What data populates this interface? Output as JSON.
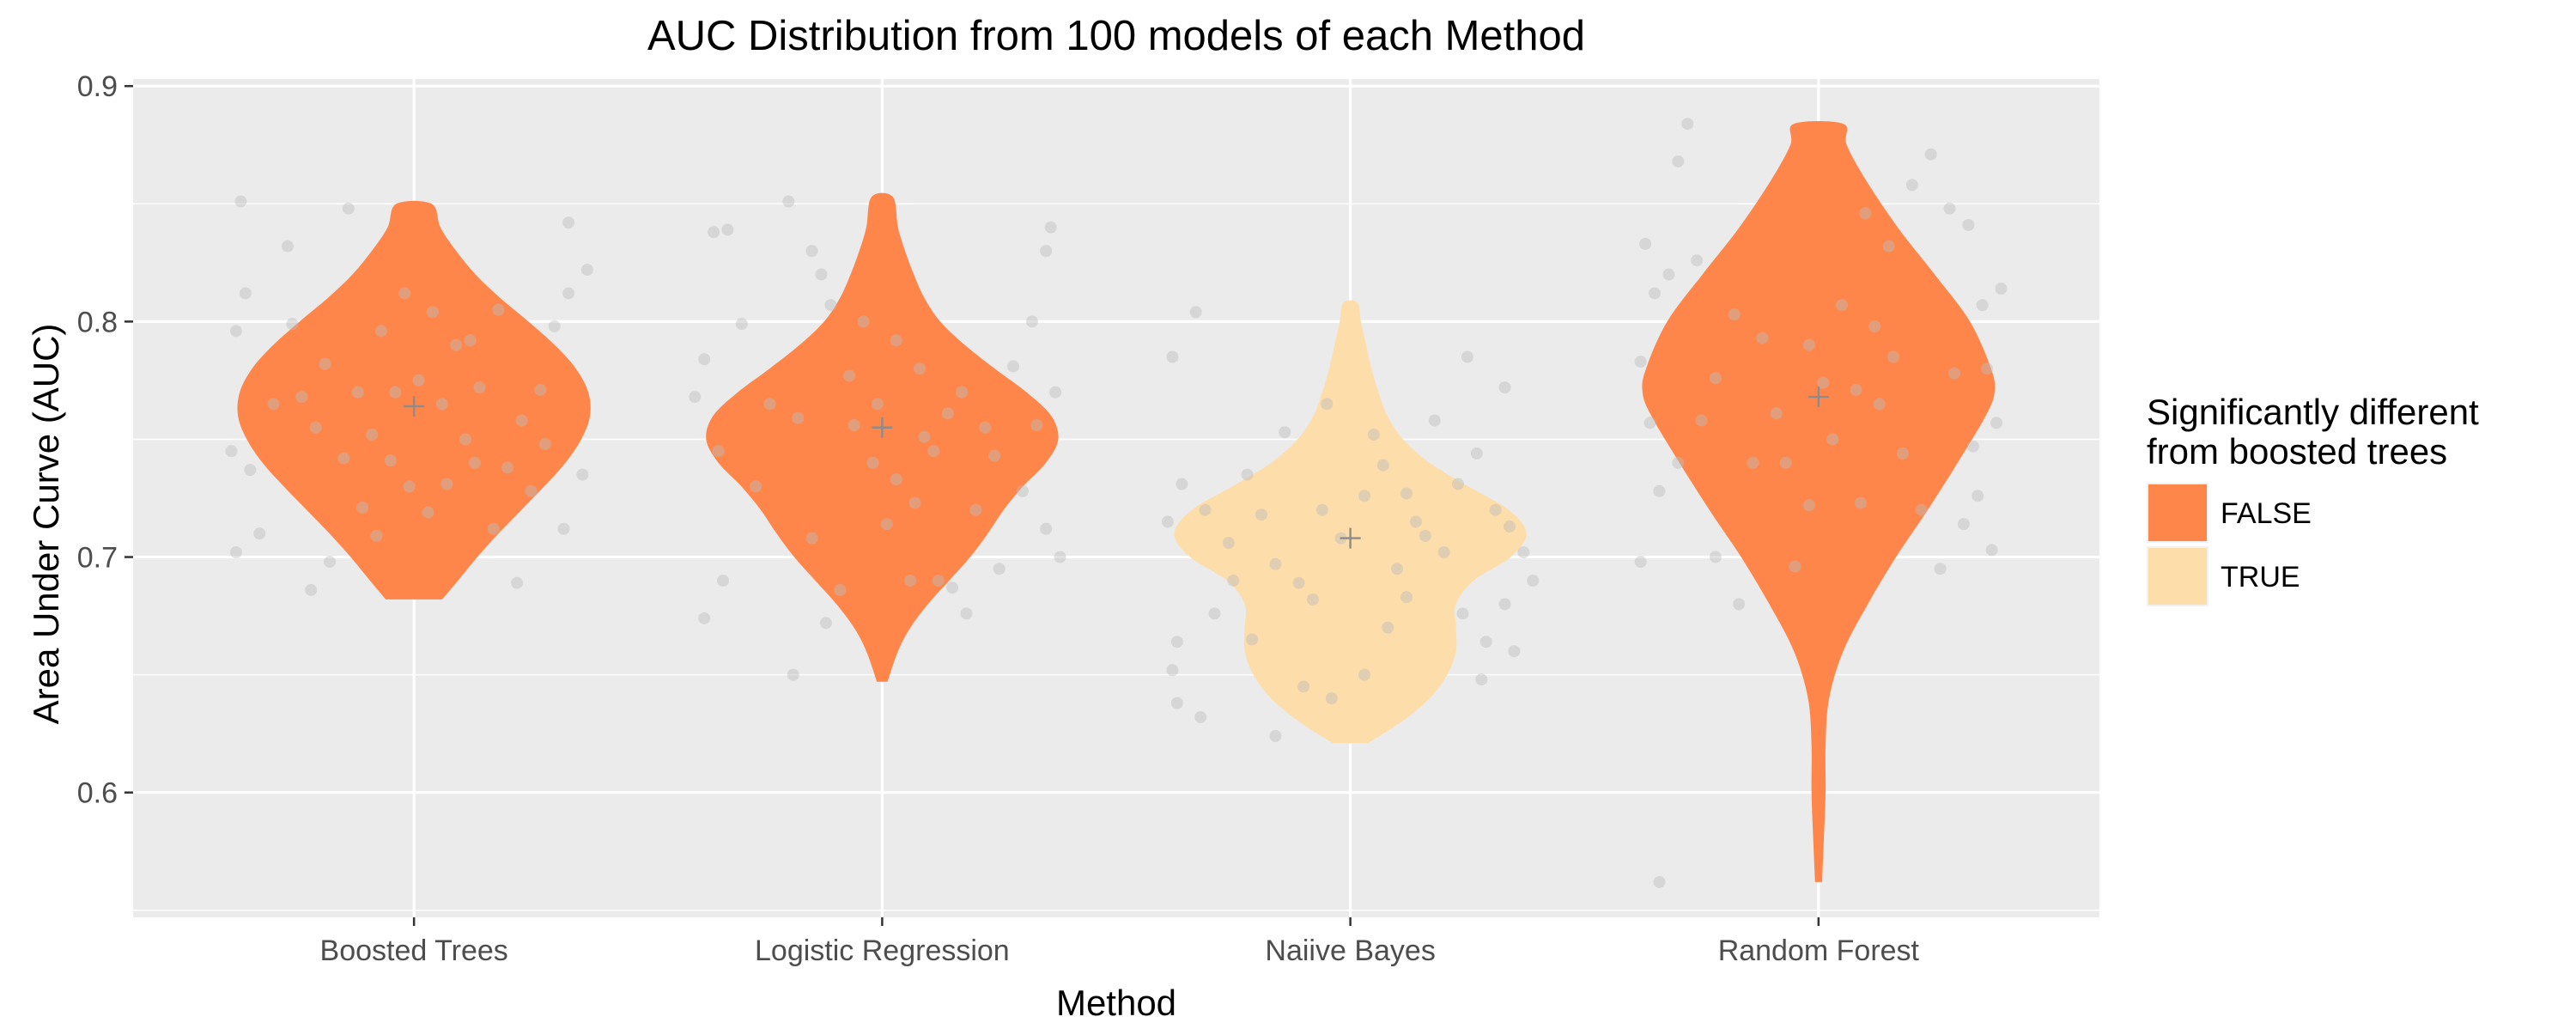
{
  "chart_data": {
    "type": "violin",
    "title": "AUC Distribution from 100 models of each Method",
    "xlabel": "Method",
    "ylabel": "Area Under Curve (AUC)",
    "categories": [
      "Boosted Trees",
      "Logistic Regression",
      "Naiive Bayes",
      "Random Forest"
    ],
    "ylim": [
      0.547,
      0.903
    ],
    "yticks": [
      0.6,
      0.7,
      0.8,
      0.9
    ],
    "ytick_labels": [
      "0.6",
      "0.7",
      "0.8",
      "0.9"
    ],
    "grid": true,
    "legend": {
      "title": [
        "Significantly different",
        "from boosted trees"
      ],
      "position": "right",
      "entries": [
        {
          "label": "FALSE",
          "color": "#FF864A"
        },
        {
          "label": "TRUE",
          "color": "#FDDDAA"
        }
      ]
    },
    "colors": {
      "panel_bg": "#EBEBEB",
      "gridline": "#FFFFFF",
      "false_fill": "#FF864A",
      "true_fill": "#FDDDAA",
      "jitter_point": "#BDBDBD",
      "mean_marker": "#8C8C8C"
    },
    "series": [
      {
        "category": "Boosted Trees",
        "significant": "FALSE",
        "mean": 0.764,
        "min": 0.682,
        "max": 0.85,
        "profile": [
          [
            0.682,
            0.16
          ],
          [
            0.69,
            0.25
          ],
          [
            0.7,
            0.36
          ],
          [
            0.71,
            0.48
          ],
          [
            0.72,
            0.61
          ],
          [
            0.73,
            0.74
          ],
          [
            0.74,
            0.86
          ],
          [
            0.75,
            0.95
          ],
          [
            0.76,
            1.0
          ],
          [
            0.77,
            0.99
          ],
          [
            0.78,
            0.92
          ],
          [
            0.79,
            0.8
          ],
          [
            0.8,
            0.65
          ],
          [
            0.81,
            0.49
          ],
          [
            0.82,
            0.35
          ],
          [
            0.83,
            0.24
          ],
          [
            0.84,
            0.15
          ],
          [
            0.85,
            0.1
          ]
        ]
      },
      {
        "category": "Logistic Regression",
        "significant": "FALSE",
        "mean": 0.755,
        "min": 0.647,
        "max": 0.853,
        "profile": [
          [
            0.647,
            0.03
          ],
          [
            0.66,
            0.09
          ],
          [
            0.67,
            0.16
          ],
          [
            0.68,
            0.26
          ],
          [
            0.69,
            0.38
          ],
          [
            0.7,
            0.5
          ],
          [
            0.71,
            0.6
          ],
          [
            0.72,
            0.69
          ],
          [
            0.73,
            0.8
          ],
          [
            0.74,
            0.93
          ],
          [
            0.75,
            1.0
          ],
          [
            0.76,
            0.96
          ],
          [
            0.77,
            0.82
          ],
          [
            0.78,
            0.64
          ],
          [
            0.79,
            0.47
          ],
          [
            0.8,
            0.33
          ],
          [
            0.81,
            0.24
          ],
          [
            0.82,
            0.18
          ],
          [
            0.83,
            0.13
          ],
          [
            0.84,
            0.09
          ],
          [
            0.853,
            0.06
          ]
        ]
      },
      {
        "category": "Naiive Bayes",
        "significant": "TRUE",
        "mean": 0.708,
        "min": 0.621,
        "max": 0.808,
        "profile": [
          [
            0.621,
            0.1
          ],
          [
            0.63,
            0.29
          ],
          [
            0.64,
            0.45
          ],
          [
            0.65,
            0.55
          ],
          [
            0.66,
            0.6
          ],
          [
            0.67,
            0.6
          ],
          [
            0.68,
            0.6
          ],
          [
            0.69,
            0.7
          ],
          [
            0.7,
            0.91
          ],
          [
            0.71,
            1.0
          ],
          [
            0.72,
            0.9
          ],
          [
            0.73,
            0.67
          ],
          [
            0.74,
            0.45
          ],
          [
            0.75,
            0.3
          ],
          [
            0.76,
            0.21
          ],
          [
            0.77,
            0.16
          ],
          [
            0.78,
            0.12
          ],
          [
            0.79,
            0.09
          ],
          [
            0.8,
            0.06
          ],
          [
            0.808,
            0.04
          ]
        ]
      },
      {
        "category": "Random Forest",
        "significant": "FALSE",
        "mean": 0.768,
        "min": 0.562,
        "max": 0.884,
        "profile": [
          [
            0.562,
            0.02
          ],
          [
            0.58,
            0.03
          ],
          [
            0.6,
            0.04
          ],
          [
            0.62,
            0.04
          ],
          [
            0.64,
            0.06
          ],
          [
            0.66,
            0.14
          ],
          [
            0.68,
            0.28
          ],
          [
            0.7,
            0.44
          ],
          [
            0.72,
            0.62
          ],
          [
            0.74,
            0.79
          ],
          [
            0.76,
            0.95
          ],
          [
            0.77,
            1.0
          ],
          [
            0.78,
            0.98
          ],
          [
            0.8,
            0.86
          ],
          [
            0.82,
            0.66
          ],
          [
            0.84,
            0.45
          ],
          [
            0.86,
            0.27
          ],
          [
            0.875,
            0.16
          ],
          [
            0.884,
            0.14
          ]
        ]
      }
    ],
    "jitter_points": {
      "Boosted Trees": [
        [
          -0.37,
          0.851
        ],
        [
          -0.36,
          0.812
        ],
        [
          -0.38,
          0.796
        ],
        [
          -0.39,
          0.745
        ],
        [
          -0.35,
          0.737
        ],
        [
          -0.38,
          0.702
        ],
        [
          -0.22,
          0.686
        ],
        [
          -0.18,
          0.698
        ],
        [
          -0.33,
          0.71
        ],
        [
          -0.3,
          0.765
        ],
        [
          -0.26,
          0.799
        ],
        [
          -0.27,
          0.832
        ],
        [
          -0.14,
          0.848
        ],
        [
          -0.19,
          0.782
        ],
        [
          -0.12,
          0.77
        ],
        [
          -0.09,
          0.752
        ],
        [
          -0.05,
          0.741
        ],
        [
          -0.01,
          0.73
        ],
        [
          0.03,
          0.719
        ],
        [
          0.07,
          0.731
        ],
        [
          0.11,
          0.75
        ],
        [
          0.14,
          0.772
        ],
        [
          0.09,
          0.79
        ],
        [
          0.04,
          0.804
        ],
        [
          -0.02,
          0.812
        ],
        [
          -0.07,
          0.796
        ],
        [
          0.01,
          0.775
        ],
        [
          0.06,
          0.765
        ],
        [
          -0.11,
          0.721
        ],
        [
          -0.15,
          0.742
        ],
        [
          0.2,
          0.738
        ],
        [
          0.23,
          0.758
        ],
        [
          0.27,
          0.771
        ],
        [
          0.3,
          0.798
        ],
        [
          0.33,
          0.812
        ],
        [
          0.37,
          0.822
        ],
        [
          0.33,
          0.842
        ],
        [
          0.36,
          0.735
        ],
        [
          0.32,
          0.712
        ],
        [
          0.22,
          0.689
        ],
        [
          0.25,
          0.728
        ],
        [
          0.17,
          0.712
        ],
        [
          0.28,
          0.748
        ],
        [
          -0.04,
          0.77
        ],
        [
          0.12,
          0.792
        ],
        [
          -0.21,
          0.755
        ],
        [
          -0.24,
          0.768
        ],
        [
          0.18,
          0.805
        ],
        [
          -0.08,
          0.709
        ],
        [
          0.13,
          0.74
        ]
      ],
      "Logistic Regression": [
        [
          -0.38,
          0.784
        ],
        [
          -0.4,
          0.768
        ],
        [
          -0.36,
          0.838
        ],
        [
          -0.33,
          0.839
        ],
        [
          -0.3,
          0.799
        ],
        [
          -0.35,
          0.745
        ],
        [
          -0.34,
          0.69
        ],
        [
          -0.38,
          0.674
        ],
        [
          -0.2,
          0.851
        ],
        [
          -0.15,
          0.83
        ],
        [
          -0.13,
          0.82
        ],
        [
          -0.11,
          0.807
        ],
        [
          -0.18,
          0.759
        ],
        [
          -0.24,
          0.765
        ],
        [
          -0.06,
          0.756
        ],
        [
          -0.02,
          0.74
        ],
        [
          0.03,
          0.733
        ],
        [
          0.07,
          0.723
        ],
        [
          0.11,
          0.745
        ],
        [
          0.14,
          0.761
        ],
        [
          0.08,
          0.78
        ],
        [
          0.03,
          0.792
        ],
        [
          -0.04,
          0.8
        ],
        [
          0.01,
          0.714
        ],
        [
          -0.09,
          0.686
        ],
        [
          -0.12,
          0.672
        ],
        [
          -0.19,
          0.65
        ],
        [
          0.06,
          0.69
        ],
        [
          0.12,
          0.69
        ],
        [
          0.2,
          0.72
        ],
        [
          0.24,
          0.743
        ],
        [
          0.28,
          0.781
        ],
        [
          0.32,
          0.8
        ],
        [
          0.36,
          0.84
        ],
        [
          0.35,
          0.83
        ],
        [
          0.37,
          0.77
        ],
        [
          0.33,
          0.756
        ],
        [
          0.3,
          0.728
        ],
        [
          0.35,
          0.712
        ],
        [
          0.38,
          0.7
        ],
        [
          0.25,
          0.695
        ],
        [
          0.18,
          0.676
        ],
        [
          0.15,
          0.687
        ],
        [
          -0.27,
          0.73
        ],
        [
          -0.07,
          0.777
        ],
        [
          0.17,
          0.77
        ],
        [
          -0.01,
          0.765
        ],
        [
          0.09,
          0.751
        ],
        [
          -0.15,
          0.708
        ],
        [
          0.22,
          0.755
        ]
      ],
      "Naiive Bayes": [
        [
          -0.38,
          0.785
        ],
        [
          -0.33,
          0.804
        ],
        [
          -0.36,
          0.731
        ],
        [
          -0.39,
          0.715
        ],
        [
          -0.37,
          0.664
        ],
        [
          -0.38,
          0.652
        ],
        [
          -0.32,
          0.632
        ],
        [
          -0.37,
          0.638
        ],
        [
          -0.31,
          0.72
        ],
        [
          -0.26,
          0.706
        ],
        [
          -0.22,
          0.735
        ],
        [
          -0.19,
          0.718
        ],
        [
          -0.16,
          0.697
        ],
        [
          -0.11,
          0.689
        ],
        [
          -0.06,
          0.72
        ],
        [
          -0.02,
          0.708
        ],
        [
          0.03,
          0.726
        ],
        [
          0.07,
          0.739
        ],
        [
          0.12,
          0.727
        ],
        [
          0.16,
          0.709
        ],
        [
          0.2,
          0.702
        ],
        [
          0.23,
          0.731
        ],
        [
          0.27,
          0.744
        ],
        [
          0.31,
          0.72
        ],
        [
          0.34,
          0.713
        ],
        [
          0.37,
          0.702
        ],
        [
          0.39,
          0.69
        ],
        [
          0.33,
          0.68
        ],
        [
          0.29,
          0.664
        ],
        [
          0.28,
          0.648
        ],
        [
          0.35,
          0.66
        ],
        [
          0.24,
          0.676
        ],
        [
          0.12,
          0.683
        ],
        [
          0.08,
          0.67
        ],
        [
          0.03,
          0.65
        ],
        [
          -0.04,
          0.64
        ],
        [
          -0.1,
          0.645
        ],
        [
          -0.16,
          0.624
        ],
        [
          -0.21,
          0.665
        ],
        [
          -0.29,
          0.676
        ],
        [
          -0.05,
          0.765
        ],
        [
          0.05,
          0.752
        ],
        [
          0.18,
          0.758
        ],
        [
          0.25,
          0.785
        ],
        [
          0.33,
          0.772
        ],
        [
          -0.14,
          0.753
        ],
        [
          0.1,
          0.695
        ],
        [
          -0.08,
          0.682
        ],
        [
          0.14,
          0.715
        ],
        [
          -0.25,
          0.69
        ]
      ],
      "Random Forest": [
        [
          -0.37,
          0.833
        ],
        [
          -0.35,
          0.812
        ],
        [
          -0.38,
          0.783
        ],
        [
          -0.36,
          0.757
        ],
        [
          -0.34,
          0.728
        ],
        [
          -0.38,
          0.698
        ],
        [
          -0.3,
          0.868
        ],
        [
          -0.28,
          0.884
        ],
        [
          -0.32,
          0.82
        ],
        [
          -0.25,
          0.758
        ],
        [
          -0.22,
          0.7
        ],
        [
          -0.17,
          0.68
        ],
        [
          -0.12,
          0.793
        ],
        [
          -0.07,
          0.74
        ],
        [
          -0.02,
          0.722
        ],
        [
          0.03,
          0.75
        ],
        [
          0.08,
          0.771
        ],
        [
          0.12,
          0.798
        ],
        [
          0.15,
          0.832
        ],
        [
          0.2,
          0.858
        ],
        [
          0.24,
          0.871
        ],
        [
          0.28,
          0.848
        ],
        [
          0.32,
          0.841
        ],
        [
          0.35,
          0.807
        ],
        [
          0.39,
          0.814
        ],
        [
          0.36,
          0.78
        ],
        [
          0.38,
          0.757
        ],
        [
          0.33,
          0.747
        ],
        [
          0.31,
          0.714
        ],
        [
          0.37,
          0.703
        ],
        [
          0.26,
          0.695
        ],
        [
          0.22,
          0.72
        ],
        [
          0.18,
          0.744
        ],
        [
          0.13,
          0.765
        ],
        [
          0.09,
          0.723
        ],
        [
          -0.02,
          0.79
        ],
        [
          -0.34,
          0.562
        ],
        [
          -0.18,
          0.803
        ],
        [
          -0.09,
          0.761
        ],
        [
          -0.26,
          0.826
        ],
        [
          0.05,
          0.807
        ],
        [
          0.01,
          0.774
        ],
        [
          -0.14,
          0.74
        ],
        [
          0.16,
          0.785
        ],
        [
          0.29,
          0.778
        ],
        [
          0.34,
          0.726
        ],
        [
          -0.05,
          0.696
        ],
        [
          -0.22,
          0.776
        ],
        [
          0.1,
          0.846
        ],
        [
          -0.3,
          0.74
        ]
      ]
    }
  }
}
